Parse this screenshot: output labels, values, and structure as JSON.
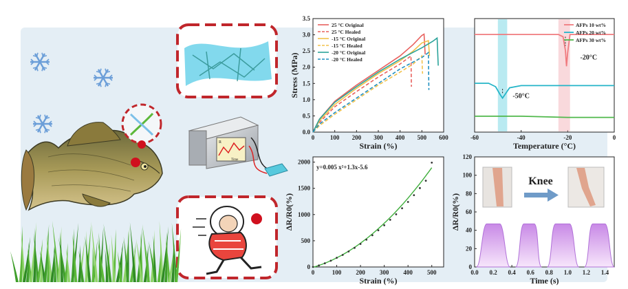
{
  "colors": {
    "panel_bg": "#e4eef5",
    "frame_red": "#c0262b",
    "grass": "#5cb83a",
    "snow": "#6b9ed8",
    "arrow_blue": "#6f9bc8"
  },
  "icons": [
    "snowflake-icon",
    "fish-illustration",
    "dna-icon",
    "hydrogel-network-illustration",
    "resistance-meter-illustration",
    "runner-in-jacket-illustration",
    "grass-illustration",
    "arrow-right-icon"
  ],
  "illustrations": {
    "device_labels": [
      "R",
      "Time"
    ]
  },
  "chart_data": [
    {
      "id": "stress_strain",
      "type": "line",
      "xlabel": "Strain (%)",
      "ylabel": "Stress (MPa)",
      "xlim": [
        0,
        600
      ],
      "ylim": [
        0,
        3.5
      ],
      "xticks": [
        "0",
        "100",
        "200",
        "300",
        "400",
        "500",
        "600"
      ],
      "yticks": [
        "0.0",
        "0.5",
        "1.0",
        "1.5",
        "2.0",
        "2.5",
        "3.0",
        "3.5"
      ],
      "legend_position": "top-left",
      "series": [
        {
          "name": "25 °C Original",
          "color": "#e8605d",
          "dash": false,
          "x": [
            0,
            30,
            100,
            200,
            300,
            400,
            460,
            500,
            510,
            515
          ],
          "y": [
            0,
            0.4,
            0.95,
            1.45,
            1.9,
            2.35,
            2.7,
            2.98,
            3.02,
            2.4
          ]
        },
        {
          "name": "25 °C Healed",
          "color": "#e8605d",
          "dash": true,
          "x": [
            0,
            30,
            100,
            200,
            300,
            400,
            450,
            452
          ],
          "y": [
            0,
            0.3,
            0.78,
            1.25,
            1.7,
            2.1,
            2.35,
            1.4
          ]
        },
        {
          "name": "-15 °C Original",
          "color": "#f2c14a",
          "dash": false,
          "x": [
            0,
            30,
            100,
            200,
            300,
            400,
            460,
            500,
            530,
            535
          ],
          "y": [
            0,
            0.35,
            0.85,
            1.35,
            1.8,
            2.2,
            2.5,
            2.75,
            2.82,
            2.35
          ]
        },
        {
          "name": "-15 °C Healed",
          "color": "#f2c14a",
          "dash": true,
          "x": [
            0,
            30,
            100,
            200,
            300,
            400,
            460,
            500,
            503
          ],
          "y": [
            0,
            0.2,
            0.55,
            1.0,
            1.45,
            1.85,
            2.1,
            2.35,
            1.8
          ]
        },
        {
          "name": "-20 °C Original",
          "color": "#2ba39a",
          "dash": false,
          "x": [
            0,
            30,
            100,
            200,
            300,
            400,
            500,
            550,
            570,
            575
          ],
          "y": [
            0,
            0.4,
            0.92,
            1.4,
            1.85,
            2.25,
            2.6,
            2.8,
            2.9,
            2.05
          ]
        },
        {
          "name": "-20 °C Healed",
          "color": "#1f8fc0",
          "dash": true,
          "x": [
            0,
            30,
            100,
            200,
            300,
            400,
            500,
            530,
            532
          ],
          "y": [
            0,
            0.25,
            0.6,
            1.05,
            1.5,
            1.95,
            2.3,
            2.45,
            1.3
          ]
        }
      ]
    },
    {
      "id": "dsc",
      "type": "line",
      "xlabel": "Temperature (°C)",
      "ylabel": "",
      "xlim": [
        -60,
        0
      ],
      "xticks": [
        "-60",
        "-40",
        "-20",
        "0"
      ],
      "legend_position": "top-right",
      "highlight_bands": [
        {
          "from": -50,
          "to": -46,
          "color": "#7fd8e6"
        },
        {
          "from": -24,
          "to": -19,
          "color": "#f4b9c0"
        }
      ],
      "annotations": [
        "-20°C",
        "-50°C"
      ],
      "series": [
        {
          "name": "AFPs 10 wt%",
          "color": "#f07b7f",
          "x": [
            -60,
            -30,
            -24,
            -22,
            -21,
            -20.5,
            -20,
            -19,
            -15,
            0
          ],
          "y": [
            0.86,
            0.86,
            0.86,
            0.84,
            0.72,
            0.58,
            0.7,
            0.86,
            0.86,
            0.86
          ]
        },
        {
          "name": "AFPs 20 wt%",
          "color": "#24b5c8",
          "x": [
            -60,
            -54,
            -51,
            -49,
            -48,
            -47,
            -45,
            -40,
            -30,
            -20,
            0
          ],
          "y": [
            0.43,
            0.43,
            0.4,
            0.33,
            0.3,
            0.33,
            0.39,
            0.41,
            0.41,
            0.41,
            0.41
          ]
        },
        {
          "name": "AFPs 30 wt%",
          "color": "#4fb84a",
          "x": [
            -60,
            -40,
            -20,
            0
          ],
          "y": [
            0.14,
            0.14,
            0.13,
            0.13
          ]
        }
      ]
    },
    {
      "id": "resistance_strain",
      "type": "scatter",
      "xlabel": "Strain (%)",
      "ylabel": "ΔR/R0(%)",
      "xlim": [
        0,
        550
      ],
      "ylim": [
        0,
        2100
      ],
      "xticks": [
        "0",
        "100",
        "200",
        "300",
        "400",
        "500"
      ],
      "yticks": [
        "0",
        "500",
        "1000",
        "1500",
        "2000"
      ],
      "annotation": "y=0.005 x²+1.3x-5.6",
      "fit": {
        "a": 0.005,
        "b": 1.3,
        "c": -5.6
      },
      "x": [
        0,
        25,
        50,
        75,
        100,
        125,
        150,
        175,
        200,
        225,
        250,
        275,
        300,
        325,
        350,
        375,
        400,
        425,
        450,
        475,
        500
      ],
      "y": [
        0,
        30,
        70,
        120,
        175,
        230,
        295,
        365,
        440,
        520,
        605,
        700,
        795,
        900,
        1005,
        1120,
        1240,
        1370,
        1505,
        1645,
        1990
      ]
    },
    {
      "id": "knee_response",
      "type": "area",
      "xlabel": "Time (s)",
      "ylabel": "ΔR/R0(%)",
      "xlim": [
        0,
        1.5
      ],
      "ylim": [
        0,
        120
      ],
      "xticks": [
        "0.0",
        "0.2",
        "0.4",
        "0.6",
        "0.8",
        "1.0",
        "1.2",
        "1.4"
      ],
      "yticks": [
        "0",
        "20",
        "40",
        "60",
        "80",
        "100",
        "120"
      ],
      "annotation": "Knee",
      "peak_value": 47,
      "cycles": [
        {
          "start": 0.02,
          "rise_end": 0.13,
          "fall_start": 0.27,
          "end": 0.38
        },
        {
          "start": 0.44,
          "rise_end": 0.53,
          "fall_start": 0.64,
          "end": 0.72
        },
        {
          "start": 0.78,
          "rise_end": 0.87,
          "fall_start": 1.02,
          "end": 1.12
        },
        {
          "start": 1.18,
          "rise_end": 1.27,
          "fall_start": 1.4,
          "end": 1.5
        }
      ]
    }
  ]
}
